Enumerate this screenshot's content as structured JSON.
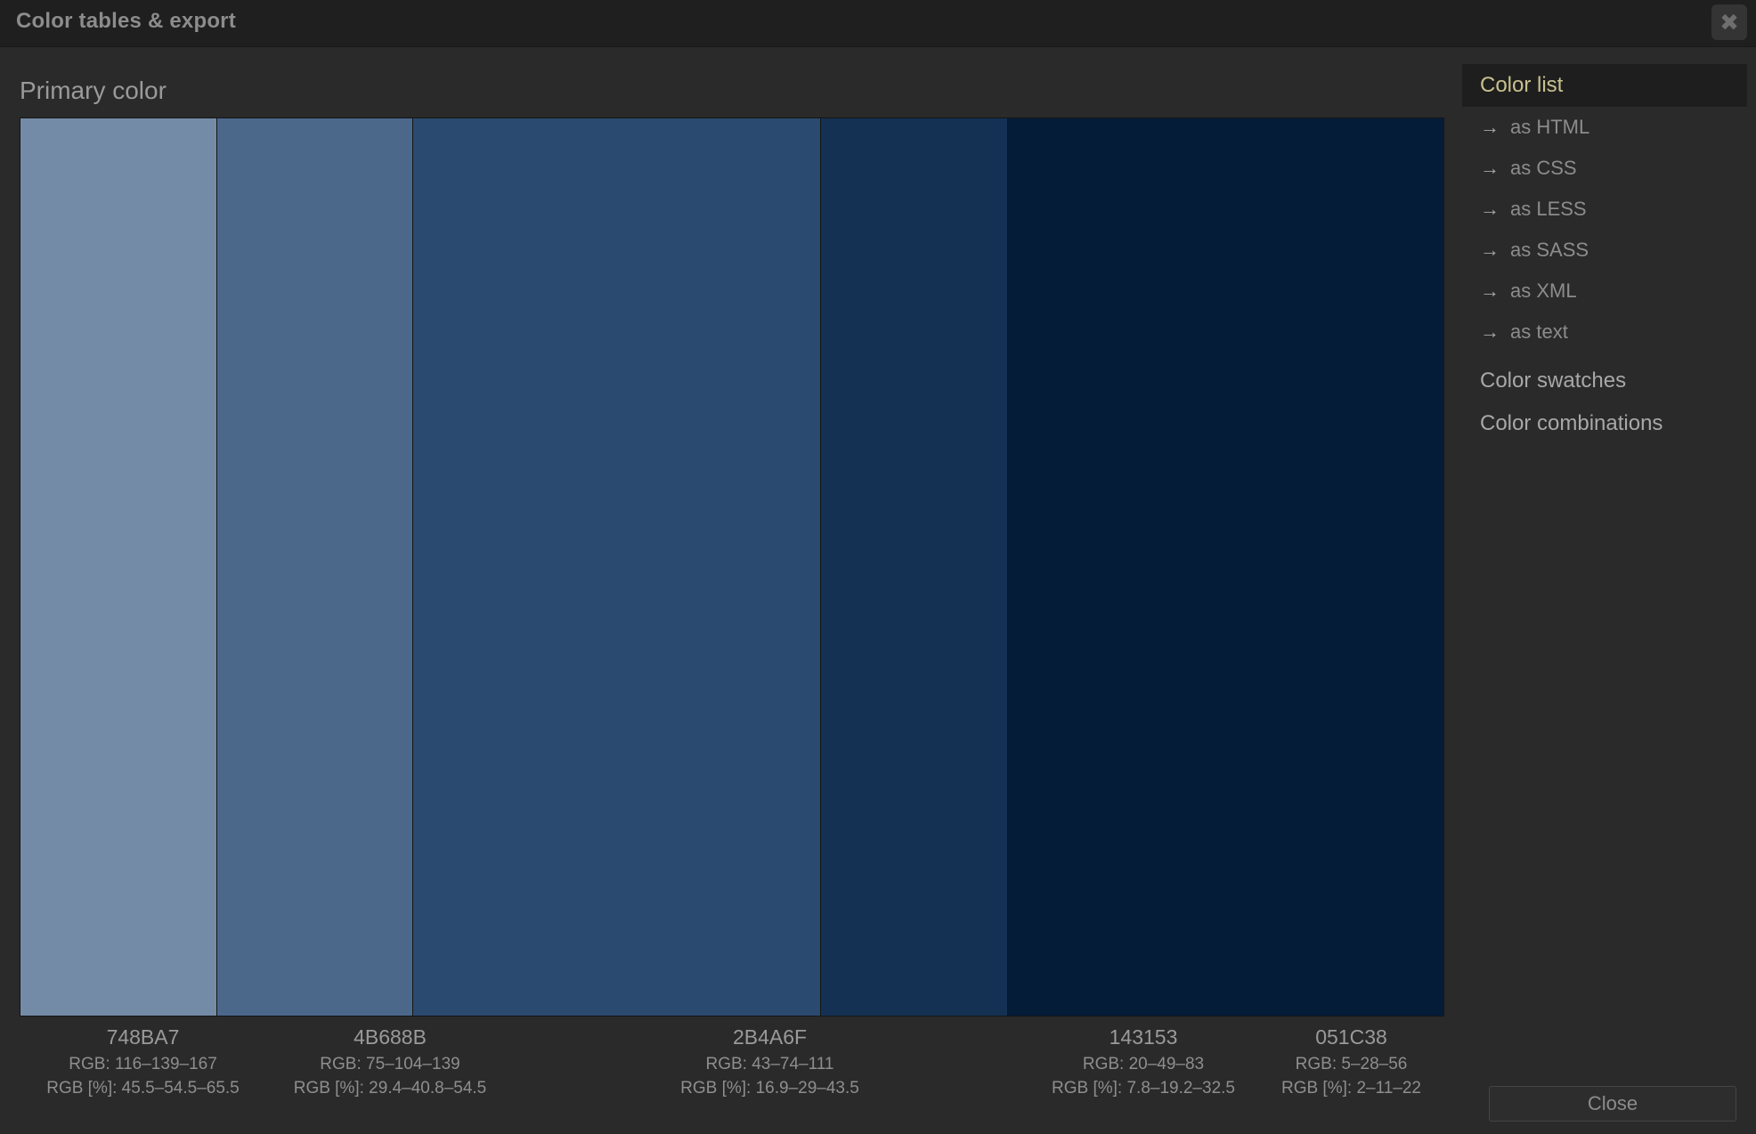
{
  "dialog": {
    "title": "Color tables & export",
    "close_icon": "close-icon",
    "close_glyph": "✖"
  },
  "section": {
    "title": "Primary color"
  },
  "colors": [
    {
      "hex": "748BA7",
      "color": "#748BA7",
      "rgb": "RGB: 116–139–167",
      "rgb_pct": "RGB [%]: 45.5–54.5–65.5"
    },
    {
      "hex": "4B688B",
      "color": "#4B688B",
      "rgb": "RGB: 75–104–139",
      "rgb_pct": "RGB [%]: 29.4–40.8–54.5"
    },
    {
      "hex": "2B4A6F",
      "color": "#2B4A6F",
      "rgb": "RGB: 43–74–111",
      "rgb_pct": "RGB [%]: 16.9–29–43.5"
    },
    {
      "hex": "143153",
      "color": "#143153",
      "rgb": "RGB: 20–49–83",
      "rgb_pct": "RGB [%]: 7.8–19.2–32.5"
    },
    {
      "hex": "051C38",
      "color": "#051C38",
      "rgb": "RGB: 5–28–56",
      "rgb_pct": "RGB [%]: 2–11–22"
    }
  ],
  "sidebar": {
    "active_item": "Color list",
    "arrow_glyph": "→",
    "sub_items": [
      "as HTML",
      "as CSS",
      "as LESS",
      "as SASS",
      "as XML",
      "as text"
    ],
    "items": [
      "Color swatches",
      "Color combinations"
    ]
  },
  "footer": {
    "close_label": "Close"
  },
  "theme": {
    "active_menu_color": "#c9c18e",
    "background": "#2a2a2a",
    "titlebar": "#1f1f1f"
  }
}
